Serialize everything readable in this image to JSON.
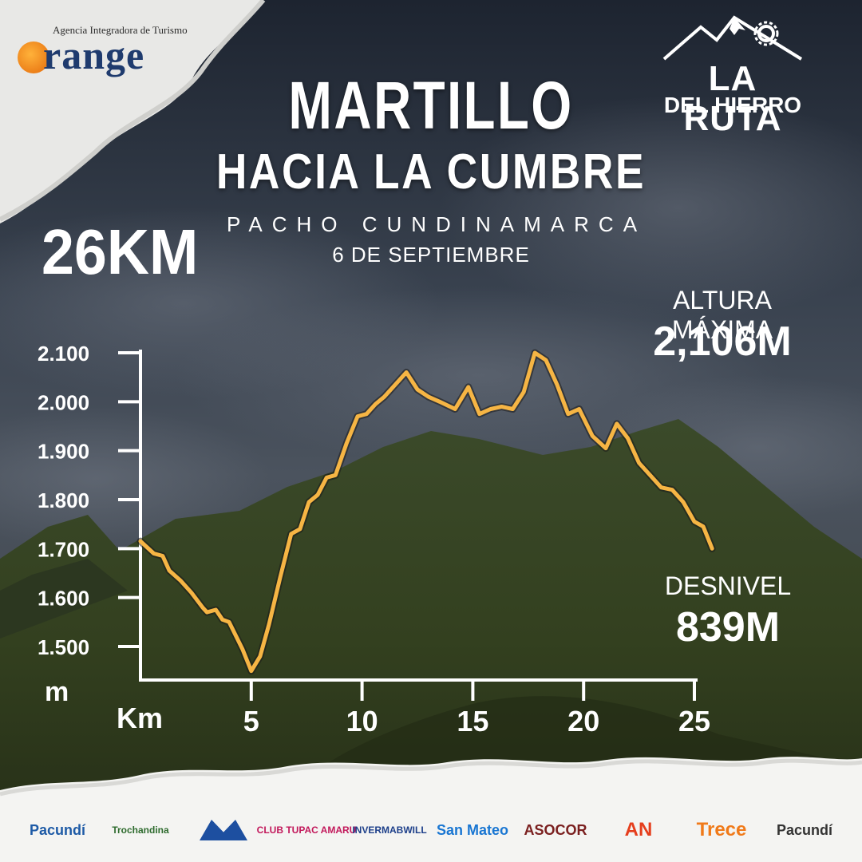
{
  "header": {
    "title_line1": "MARTILLO",
    "title_line2": "HACIA LA CUMBRE",
    "location": "PACHO CUNDINAMARCA",
    "date": "6 DE SEPTIEMBRE"
  },
  "stats": {
    "distance": "26KM",
    "max_altitude_label": "ALTURA MÁXIMA",
    "max_altitude_value": "2,106M",
    "elevation_gain_label": "DESNIVEL",
    "elevation_gain_value": "839M"
  },
  "branding": {
    "agency_tagline": "Agencia Integradora de Turismo",
    "agency_name": "range",
    "event_logo_line1": "LA RUTA",
    "event_logo_line2": "DEL HIERRO"
  },
  "sponsors": [
    {
      "text": "Pacundí",
      "color": "#1d5aa6"
    },
    {
      "text": "Trochandina",
      "color": "#2e6b2e"
    },
    {
      "text": "",
      "color": "#1d4fa0"
    },
    {
      "text": "CLUB TUPAC AMARU",
      "color": "#c2185b"
    },
    {
      "text": "INVERMABWILL",
      "color": "#1d3f8a"
    },
    {
      "text": "San Mateo",
      "color": "#1976d2"
    },
    {
      "text": "ASOCOR",
      "color": "#7a1f1f"
    },
    {
      "text": "AN",
      "color": "#e53e1d"
    },
    {
      "text": "Trece",
      "color": "#f07a1a"
    },
    {
      "text": "Pacundí",
      "color": "#333333"
    }
  ],
  "colors": {
    "line": "#f6b544",
    "axis": "#ffffff",
    "text": "#ffffff"
  },
  "chart_data": {
    "type": "line",
    "xlabel": "Km",
    "ylabel": "m",
    "xlim": [
      0,
      26
    ],
    "ylim": [
      1440,
      2110
    ],
    "x_ticks": [
      5,
      10,
      15,
      20,
      25
    ],
    "y_ticks": [
      1500,
      1600,
      1700,
      1800,
      1900,
      2000,
      2100
    ],
    "y_tick_labels": [
      "1.500",
      "1.600",
      "1.700",
      "1.800",
      "1.900",
      "2.000",
      "2.100"
    ],
    "grid": false,
    "series": [
      {
        "x": [
          0,
          0.6,
          1.0,
          1.3,
          1.8,
          2.3,
          2.8,
          3.0,
          3.4,
          3.7,
          4.0,
          4.6,
          5.0,
          5.4,
          5.8,
          6.3,
          6.8,
          7.2,
          7.6,
          8.0,
          8.4,
          8.8,
          9.3,
          9.8,
          10.2,
          10.6,
          11.0,
          11.5,
          12.0,
          12.5,
          13.0,
          13.5,
          14.2,
          14.8,
          15.3,
          15.8,
          16.3,
          16.8,
          17.3,
          17.8,
          18.3,
          18.8,
          19.3,
          19.8,
          20.4,
          21.0,
          21.5,
          22.0,
          22.5,
          23.0,
          23.5,
          24.0,
          24.5,
          25.0,
          25.4,
          25.8
        ],
        "y": [
          1715,
          1690,
          1685,
          1655,
          1635,
          1610,
          1580,
          1570,
          1575,
          1555,
          1550,
          1495,
          1450,
          1480,
          1545,
          1640,
          1730,
          1740,
          1795,
          1810,
          1845,
          1850,
          1915,
          1970,
          1975,
          1995,
          2010,
          2035,
          2060,
          2025,
          2010,
          2000,
          1985,
          2030,
          1975,
          1985,
          1990,
          1985,
          2020,
          2100,
          2085,
          2035,
          1975,
          1985,
          1930,
          1905,
          1955,
          1925,
          1875,
          1850,
          1825,
          1820,
          1795,
          1755,
          1745,
          1700
        ]
      }
    ]
  }
}
